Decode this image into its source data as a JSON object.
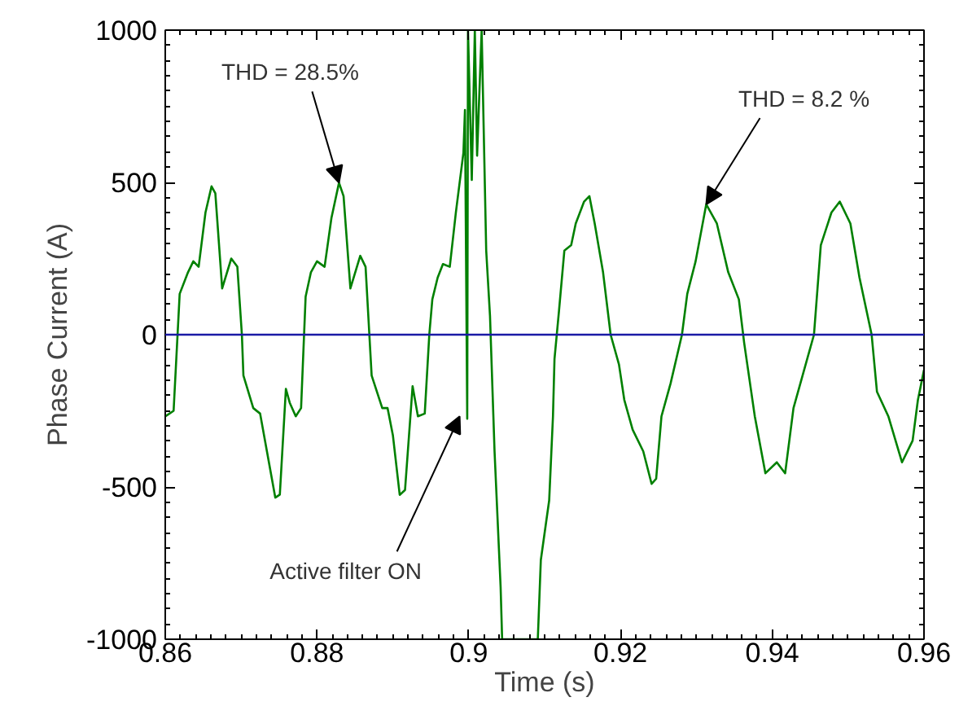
{
  "chart_data": {
    "type": "line",
    "xlabel": "Time (s)",
    "ylabel": "Phase Current (A)",
    "xlim": [
      0.86,
      0.96
    ],
    "xticks": [
      0.86,
      0.88,
      0.9,
      0.92,
      0.94,
      0.96
    ],
    "ylim": [
      -1000,
      1000
    ],
    "yticks": [
      -1000,
      -500,
      0,
      500,
      1000
    ],
    "grid": false,
    "marker": "none",
    "line_style": "solid",
    "series": [
      {
        "color": "#008000",
        "x": [
          0.86003,
          0.8611,
          0.8619,
          0.863,
          0.8637,
          0.8644,
          0.8653,
          0.8661,
          0.8666,
          0.8675,
          0.8687,
          0.8695,
          0.8701,
          0.8703,
          0.8716,
          0.8725,
          0.8734,
          0.8745,
          0.8751,
          0.8759,
          0.8764,
          0.8772,
          0.8779,
          0.8785,
          0.8792,
          0.88,
          0.881,
          0.8819,
          0.8829,
          0.8835,
          0.8844,
          0.8857,
          0.8864,
          0.8869,
          0.8872,
          0.8886,
          0.8893,
          0.89,
          0.8909,
          0.8916,
          0.8926,
          0.8933,
          0.8942,
          0.8948,
          0.8952,
          0.8959,
          0.8966,
          0.8975,
          0.8983,
          0.8993,
          0.8995,
          0.8998,
          0.8999,
          0.9004,
          0.9008,
          0.9011,
          0.9017,
          0.9023,
          0.9028,
          0.9034,
          0.9042,
          0.9044,
          0.9091,
          0.9095,
          0.9102,
          0.9106,
          0.9111,
          0.9113,
          0.9119,
          0.9126,
          0.9135,
          0.9141,
          0.9152,
          0.9159,
          0.9166,
          0.9177,
          0.9187,
          0.9198,
          0.9205,
          0.9216,
          0.923,
          0.9241,
          0.9247,
          0.9254,
          0.9266,
          0.9281,
          0.9288,
          0.9299,
          0.9313,
          0.9327,
          0.9342,
          0.9356,
          0.9363,
          0.9377,
          0.9391,
          0.9406,
          0.9417,
          0.9428,
          0.9442,
          0.9455,
          0.9464,
          0.9478,
          0.9489,
          0.9503,
          0.9515,
          0.9531,
          0.9538,
          0.9553,
          0.9571,
          0.9585,
          0.9592,
          0.96
        ],
        "values": [
          -268,
          -250,
          134,
          205,
          241,
          223,
          401,
          487,
          464,
          152,
          250,
          223,
          0,
          -134,
          -241,
          -259,
          -383,
          -535,
          -525,
          -178,
          -223,
          -268,
          -241,
          125,
          205,
          241,
          223,
          383,
          499,
          455,
          152,
          259,
          223,
          0,
          -134,
          -241,
          -241,
          -330,
          -526,
          -510,
          -169,
          -268,
          -259,
          0,
          116,
          187,
          232,
          223,
          401,
          598,
          738,
          -276,
          1000,
          508,
          1000,
          588,
          1000,
          276,
          62,
          -383,
          -829,
          -1000,
          -1000,
          -740,
          -615,
          -544,
          -268,
          -80,
          80,
          276,
          294,
          365,
          437,
          455,
          365,
          205,
          0,
          -98,
          -214,
          -312,
          -383,
          -490,
          -473,
          -268,
          -160,
          0,
          134,
          241,
          428,
          365,
          205,
          116,
          -27,
          -268,
          -455,
          -419,
          -455,
          -241,
          -116,
          0,
          294,
          401,
          437,
          365,
          187,
          0,
          -187,
          -268,
          -419,
          -348,
          -214,
          -116
        ]
      }
    ],
    "ref_lines": [
      {
        "axis": "y",
        "value": 0,
        "color": "#1a1aa6"
      }
    ],
    "annotations": [
      {
        "text": "THD = 28.5%",
        "x": 0.8829,
        "y": 499
      },
      {
        "text": "THD = 8.2 %",
        "x": 0.9313,
        "y": 428
      },
      {
        "text": "Active filter ON",
        "x": 0.8988,
        "y": -268
      }
    ]
  }
}
